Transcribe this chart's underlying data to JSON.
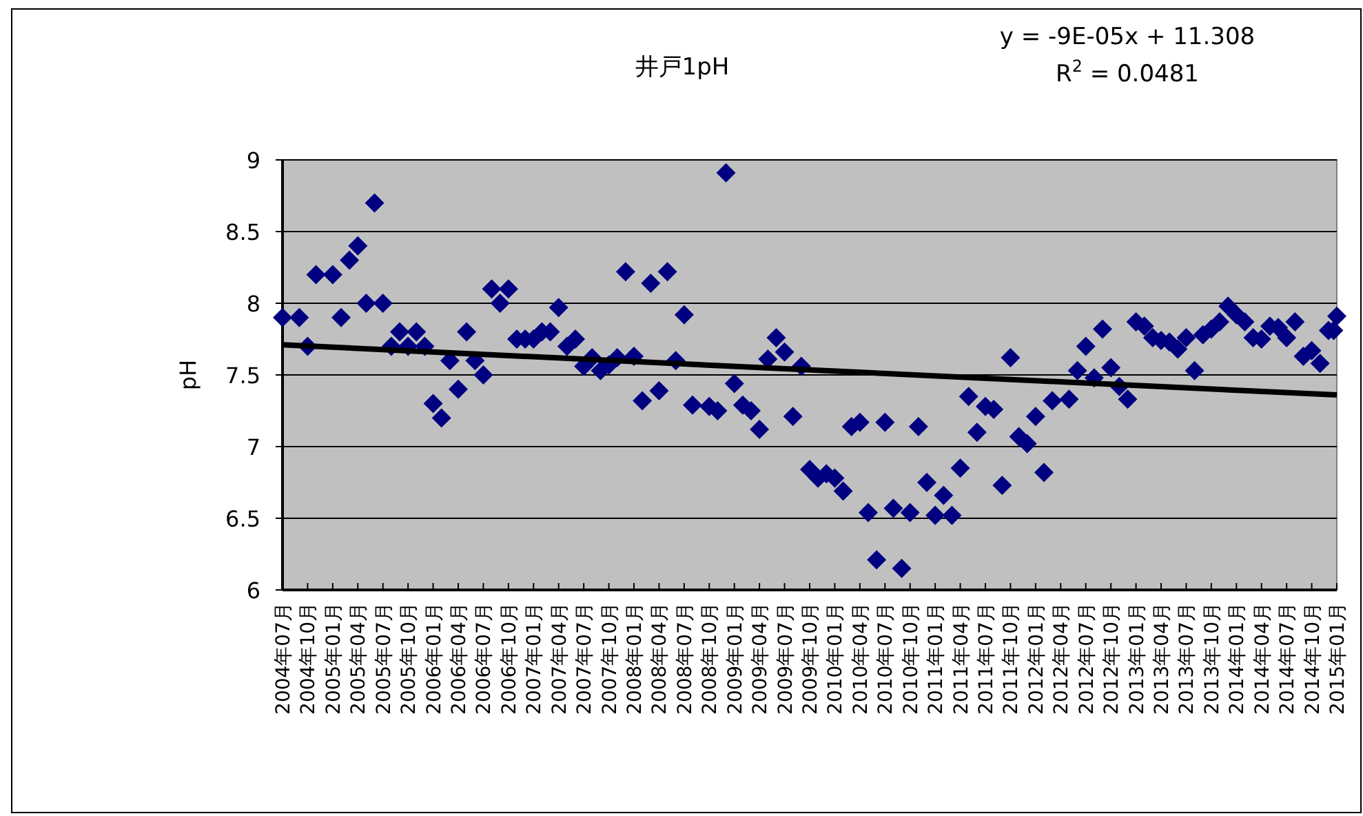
{
  "chart_data": {
    "type": "scatter",
    "title": "井戸1pH",
    "ylabel": "pH",
    "annotations": [
      "y = -9E-05x + 11.308",
      "R$^{2}$ = 0.0481"
    ],
    "xlim": [
      "2004-07",
      "2015-01"
    ],
    "ylim": [
      6,
      9
    ],
    "yticks": [
      6,
      6.5,
      7,
      7.5,
      8,
      8.5,
      9
    ],
    "grid": "y",
    "xticks": [
      {
        "value": "2004-07",
        "label": "2004年07月"
      },
      {
        "value": "2004-10",
        "label": "2004年10月"
      },
      {
        "value": "2005-01",
        "label": "2005年01月"
      },
      {
        "value": "2005-04",
        "label": "2005年04月"
      },
      {
        "value": "2005-07",
        "label": "2005年07月"
      },
      {
        "value": "2005-10",
        "label": "2005年10月"
      },
      {
        "value": "2006-01",
        "label": "2006年01月"
      },
      {
        "value": "2006-04",
        "label": "2006年04月"
      },
      {
        "value": "2006-07",
        "label": "2006年07月"
      },
      {
        "value": "2006-10",
        "label": "2006年10月"
      },
      {
        "value": "2007-01",
        "label": "2007年01月"
      },
      {
        "value": "2007-04",
        "label": "2007年04月"
      },
      {
        "value": "2007-07",
        "label": "2007年07月"
      },
      {
        "value": "2007-10",
        "label": "2007年10月"
      },
      {
        "value": "2008-01",
        "label": "2008年01月"
      },
      {
        "value": "2008-04",
        "label": "2008年04月"
      },
      {
        "value": "2008-07",
        "label": "2008年07月"
      },
      {
        "value": "2008-10",
        "label": "2008年10月"
      },
      {
        "value": "2009-01",
        "label": "2009年01月"
      },
      {
        "value": "2009-04",
        "label": "2009年04月"
      },
      {
        "value": "2009-07",
        "label": "2009年07月"
      },
      {
        "value": "2009-10",
        "label": "2009年10月"
      },
      {
        "value": "2010-01",
        "label": "2010年01月"
      },
      {
        "value": "2010-04",
        "label": "2010年04月"
      },
      {
        "value": "2010-07",
        "label": "2010年07月"
      },
      {
        "value": "2010-10",
        "label": "2010年10月"
      },
      {
        "value": "2011-01",
        "label": "2011年01月"
      },
      {
        "value": "2011-04",
        "label": "2011年04月"
      },
      {
        "value": "2011-07",
        "label": "2011年07月"
      },
      {
        "value": "2011-10",
        "label": "2011年10月"
      },
      {
        "value": "2012-01",
        "label": "2012年01月"
      },
      {
        "value": "2012-04",
        "label": "2012年04月"
      },
      {
        "value": "2012-07",
        "label": "2012年07月"
      },
      {
        "value": "2012-10",
        "label": "2012年10月"
      },
      {
        "value": "2013-01",
        "label": "2013年01月"
      },
      {
        "value": "2013-04",
        "label": "2013年04月"
      },
      {
        "value": "2013-07",
        "label": "2013年07月"
      },
      {
        "value": "2013-10",
        "label": "2013年10月"
      },
      {
        "value": "2014-01",
        "label": "2014年01月"
      },
      {
        "value": "2014-04",
        "label": "2014年04月"
      },
      {
        "value": "2014-07",
        "label": "2014年07月"
      },
      {
        "value": "2014-10",
        "label": "2014年10月"
      },
      {
        "value": "2015-01",
        "label": "2015年01月"
      }
    ],
    "series": [
      {
        "color": "#000080",
        "marker": "diamond",
        "x": [
          "2004-07",
          "2004-09",
          "2004-10",
          "2004-11",
          "2005-01",
          "2005-02",
          "2005-03",
          "2005-04",
          "2005-05",
          "2005-06",
          "2005-07",
          "2005-08",
          "2005-09",
          "2005-10",
          "2005-11",
          "2005-12",
          "2006-01",
          "2006-02",
          "2006-03",
          "2006-04",
          "2006-05",
          "2006-06",
          "2006-07",
          "2006-08",
          "2006-09",
          "2006-10",
          "2006-11",
          "2006-12",
          "2007-01",
          "2007-02",
          "2007-03",
          "2007-04",
          "2007-05",
          "2007-06",
          "2007-07",
          "2007-08",
          "2007-09",
          "2007-10",
          "2007-11",
          "2007-12",
          "2008-01",
          "2008-02",
          "2008-03",
          "2008-04",
          "2008-05",
          "2008-06",
          "2008-07",
          "2008-08",
          "2008-10",
          "2008-11",
          "2008-12",
          "2009-01",
          "2009-02",
          "2009-03",
          "2009-04",
          "2009-05",
          "2009-06",
          "2009-07",
          "2009-08",
          "2009-09",
          "2009-10",
          "2009-11",
          "2009-12",
          "2010-01",
          "2010-02",
          "2010-03",
          "2010-04",
          "2010-05",
          "2010-06",
          "2010-07",
          "2010-08",
          "2010-09",
          "2010-10",
          "2010-11",
          "2010-12",
          "2011-01",
          "2011-02",
          "2011-03",
          "2011-04",
          "2011-05",
          "2011-06",
          "2011-07",
          "2011-08",
          "2011-09",
          "2011-10",
          "2011-11",
          "2011-12",
          "2012-01",
          "2012-02",
          "2012-03",
          "2012-05",
          "2012-06",
          "2012-07",
          "2012-08",
          "2012-09",
          "2012-10",
          "2012-11",
          "2012-12",
          "2013-01",
          "2013-02",
          "2013-03",
          "2013-04",
          "2013-05",
          "2013-06",
          "2013-07",
          "2013-08",
          "2013-09",
          "2013-10",
          "2013-11",
          "2013-12",
          "2014-01",
          "2014-02",
          "2014-03",
          "2014-04",
          "2014-05",
          "2014-06",
          "2014-07",
          "2014-08",
          "2014-09",
          "2014-10",
          "2014-11",
          "2014-12-01",
          "2014-12-20",
          "2015-01-01"
        ],
        "values": [
          7.9,
          7.9,
          7.7,
          8.2,
          8.2,
          7.9,
          8.3,
          8.4,
          8.0,
          8.7,
          8.0,
          7.7,
          7.8,
          7.7,
          7.8,
          7.7,
          7.3,
          7.2,
          7.6,
          7.4,
          7.8,
          7.6,
          7.5,
          8.1,
          8.0,
          8.1,
          7.75,
          7.75,
          7.75,
          7.8,
          7.8,
          7.97,
          7.7,
          7.75,
          7.56,
          7.62,
          7.53,
          7.57,
          7.62,
          8.22,
          7.63,
          7.32,
          8.14,
          7.39,
          8.22,
          7.6,
          7.92,
          7.29,
          7.28,
          7.25,
          8.91,
          7.44,
          7.29,
          7.25,
          7.12,
          7.61,
          7.76,
          7.66,
          7.21,
          7.56,
          6.84,
          6.78,
          6.81,
          6.78,
          6.69,
          7.14,
          7.17,
          6.54,
          6.21,
          7.17,
          6.57,
          6.15,
          6.54,
          7.14,
          6.75,
          6.52,
          6.66,
          6.52,
          6.85,
          7.35,
          7.1,
          7.28,
          7.26,
          6.73,
          7.62,
          7.07,
          7.02,
          7.21,
          6.82,
          7.32,
          7.33,
          7.53,
          7.7,
          7.48,
          7.82,
          7.55,
          7.42,
          7.33,
          7.87,
          7.84,
          7.76,
          7.74,
          7.73,
          7.68,
          7.76,
          7.53,
          7.78,
          7.82,
          7.87,
          7.98,
          7.92,
          7.87,
          7.76,
          7.75,
          7.84,
          7.83,
          7.76,
          7.87,
          7.63,
          7.67,
          7.58,
          7.81,
          7.81,
          7.91
        ]
      },
      {
        "type": "line",
        "color": "#000000",
        "marker": "none",
        "x": [
          "2004-07",
          "2015-01"
        ],
        "values": [
          7.71,
          7.36
        ]
      }
    ]
  }
}
